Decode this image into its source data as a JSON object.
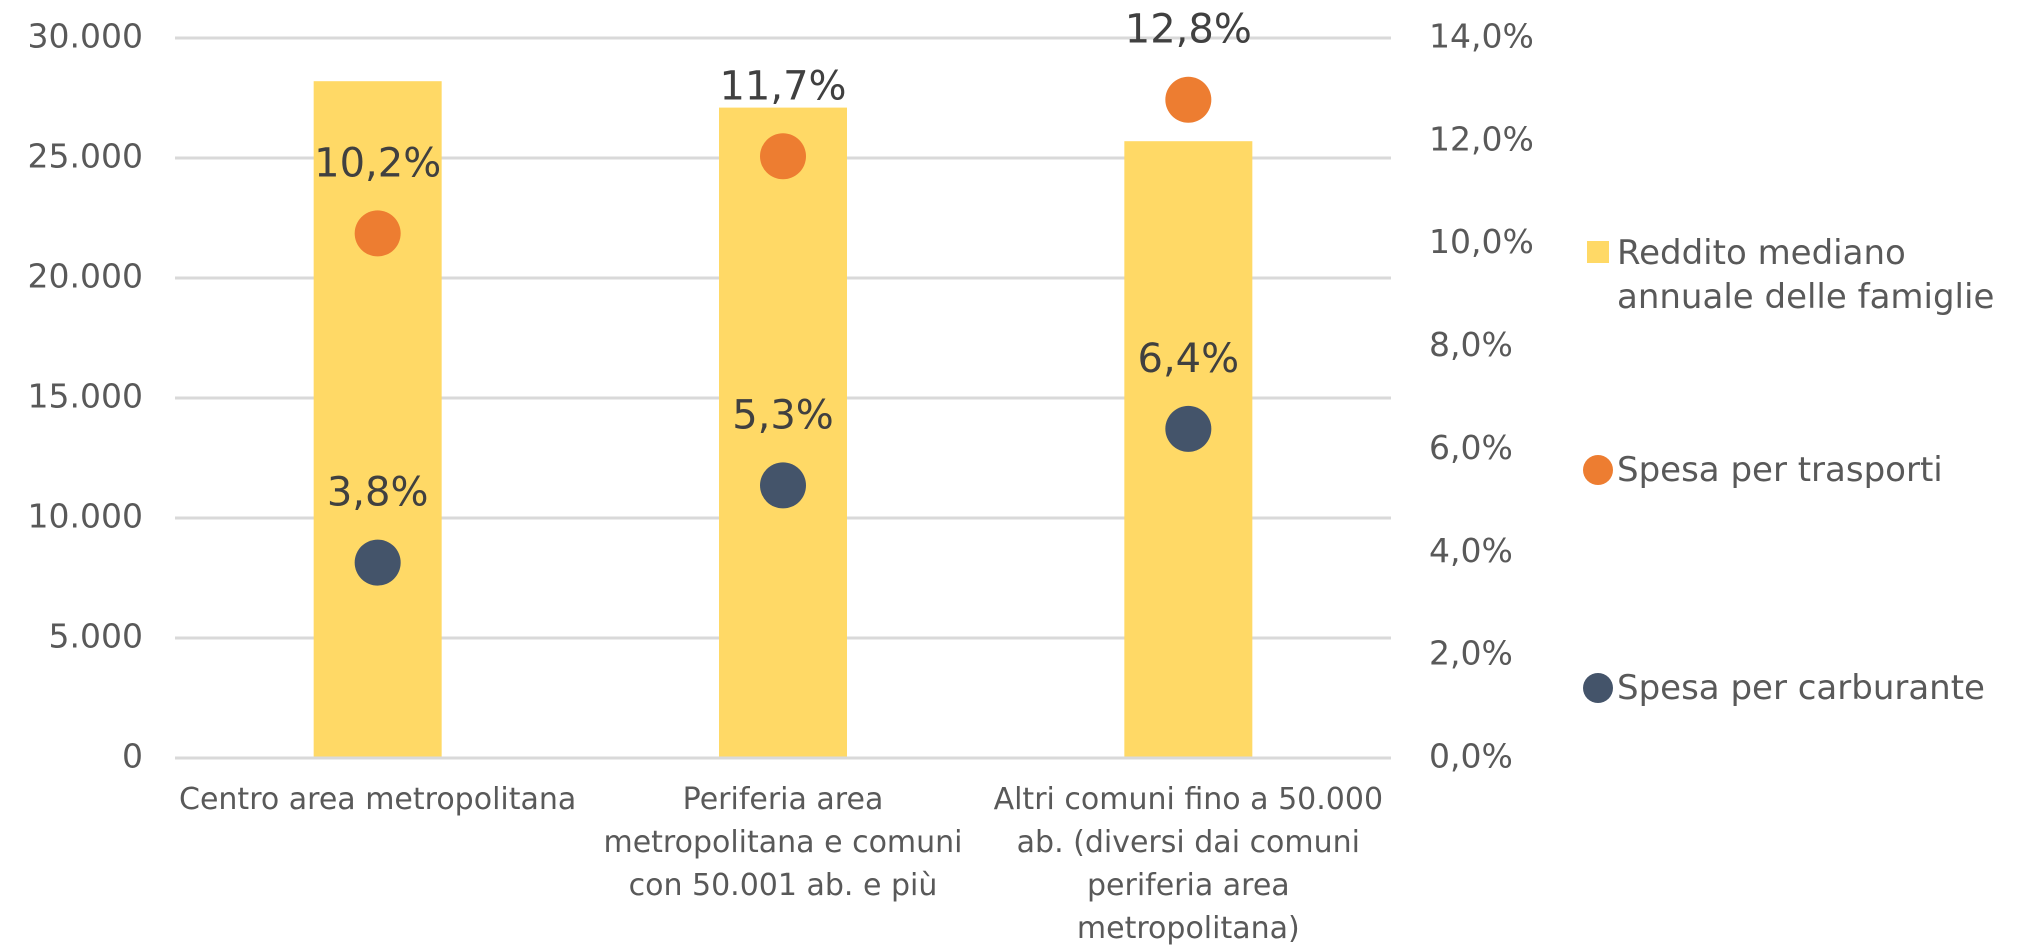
{
  "chart_data": {
    "type": "bar",
    "categories": [
      "Centro area metropolitana",
      "Periferia area metropolitana e comuni con 50.001 ab. e più",
      "Altri comuni fino a 50.000 ab. (diversi dai comuni periferia area metropolitana)"
    ],
    "series": [
      {
        "name": "Reddito mediano annuale delle famiglie",
        "type": "bar",
        "color": "#ffd966",
        "values": [
          28200,
          27100,
          25700
        ]
      },
      {
        "name": "Spesa per trasporti",
        "type": "scatter",
        "axis": "y2",
        "color": "#ed7d31",
        "values": [
          10.2,
          11.7,
          12.8
        ],
        "value_labels": [
          "10,2%",
          "11,7%",
          "12,8%"
        ]
      },
      {
        "name": "Spesa per carburante",
        "type": "scatter",
        "axis": "y2",
        "color": "#44546a",
        "values": [
          3.8,
          5.3,
          6.4
        ],
        "value_labels": [
          "3,8%",
          "5,3%",
          "6,4%"
        ]
      }
    ],
    "ylim": [
      0,
      30000
    ],
    "yticks": [
      0,
      {
        "value": 5000,
        "label": "5.000"
      },
      {
        "value": 10000,
        "label": "10.000"
      },
      {
        "value": 15000,
        "label": "15.000"
      },
      {
        "value": 20000,
        "label": "20.000"
      },
      {
        "value": 25000,
        "label": "25.000"
      },
      {
        "value": 30000,
        "label": "30.000"
      }
    ],
    "y2lim": [
      0,
      14
    ],
    "y2ticks": [
      {
        "value": 0,
        "label": "0,0%"
      },
      {
        "value": 2,
        "label": "2,0%"
      },
      {
        "value": 4,
        "label": "4,0%"
      },
      {
        "value": 6,
        "label": "6,0%"
      },
      {
        "value": 8,
        "label": "8,0%"
      },
      {
        "value": 10,
        "label": "10,0%"
      },
      {
        "value": 12,
        "label": "12,0%"
      },
      {
        "value": 14,
        "label": "14,0%"
      }
    ],
    "grid": true,
    "legend": "right"
  }
}
